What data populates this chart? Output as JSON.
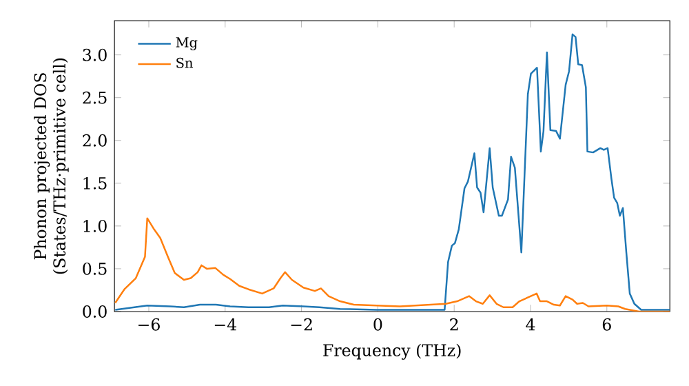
{
  "chart_data": {
    "type": "line",
    "xlabel": "Frequency (THz)",
    "ylabel": "Phonon projected DOS\n(States/THz·primitive cell)",
    "xlim": [
      -6.9,
      7.65
    ],
    "ylim": [
      0,
      3.4
    ],
    "xticks": [
      {
        "value": -6,
        "label": "−6"
      },
      {
        "value": -4,
        "label": "−4"
      },
      {
        "value": -2,
        "label": "−2"
      },
      0,
      2,
      4,
      6
    ],
    "yticks": [
      {
        "value": 0,
        "label": "0.0"
      },
      {
        "value": 0.5,
        "label": "0.5"
      },
      {
        "value": 1,
        "label": "1.0"
      },
      {
        "value": 1.5,
        "label": "1.5"
      },
      {
        "value": 2,
        "label": "2.0"
      },
      {
        "value": 2.5,
        "label": "2.5"
      },
      {
        "value": 3,
        "label": "3.0"
      }
    ],
    "legend": "top left",
    "grid": false,
    "marker": "none",
    "line_style": "solid",
    "series": [
      {
        "name": "Mg",
        "color": "#1f77b4",
        "x": [
          -6.88,
          -6.04,
          -5.44,
          -5.08,
          -4.66,
          -4.24,
          -3.87,
          -3.39,
          -2.85,
          -2.49,
          -1.95,
          -1.53,
          -0.99,
          -0.03,
          1.0,
          1.75,
          1.84,
          1.94,
          2.02,
          2.12,
          2.27,
          2.36,
          2.53,
          2.6,
          2.69,
          2.77,
          2.93,
          3.01,
          3.17,
          3.25,
          3.41,
          3.49,
          3.59,
          3.76,
          3.93,
          4.01,
          4.17,
          4.27,
          4.34,
          4.43,
          4.52,
          4.67,
          4.77,
          4.92,
          5.01,
          5.1,
          5.18,
          5.25,
          5.35,
          5.45,
          5.49,
          5.64,
          5.83,
          5.92,
          6.02,
          6.12,
          6.19,
          6.27,
          6.34,
          6.42,
          6.51,
          6.6,
          6.72,
          6.9,
          7.65
        ],
        "values": [
          0.02,
          0.07,
          0.06,
          0.05,
          0.08,
          0.08,
          0.06,
          0.05,
          0.05,
          0.07,
          0.06,
          0.05,
          0.03,
          0.02,
          0.02,
          0.02,
          0.58,
          0.77,
          0.8,
          0.96,
          1.44,
          1.52,
          1.85,
          1.45,
          1.39,
          1.16,
          1.91,
          1.45,
          1.12,
          1.12,
          1.31,
          1.81,
          1.68,
          0.69,
          2.54,
          2.78,
          2.85,
          1.87,
          2.11,
          3.03,
          2.12,
          2.11,
          2.02,
          2.65,
          2.81,
          3.24,
          3.21,
          2.89,
          2.88,
          2.62,
          1.87,
          1.86,
          1.91,
          1.89,
          1.91,
          1.55,
          1.33,
          1.27,
          1.12,
          1.21,
          0.69,
          0.21,
          0.09,
          0.02,
          0.02
        ]
      },
      {
        "name": "Sn",
        "color": "#ff7f0e",
        "x": [
          -6.88,
          -6.64,
          -6.34,
          -6.1,
          -6.04,
          -5.86,
          -5.7,
          -5.5,
          -5.32,
          -5.08,
          -4.9,
          -4.72,
          -4.62,
          -4.48,
          -4.26,
          -4.05,
          -3.87,
          -3.63,
          -3.39,
          -3.03,
          -2.73,
          -2.55,
          -2.43,
          -2.25,
          -1.95,
          -1.65,
          -1.49,
          -1.29,
          -0.99,
          -0.63,
          -0.03,
          0.58,
          1.78,
          2.08,
          2.39,
          2.57,
          2.75,
          2.93,
          3.11,
          3.29,
          3.53,
          3.71,
          4.01,
          4.16,
          4.25,
          4.43,
          4.61,
          4.77,
          4.92,
          5.1,
          5.22,
          5.37,
          5.52,
          6.0,
          6.3,
          6.48,
          6.84,
          7.65
        ],
        "values": [
          0.1,
          0.26,
          0.39,
          0.64,
          1.09,
          0.96,
          0.86,
          0.64,
          0.45,
          0.37,
          0.39,
          0.46,
          0.54,
          0.5,
          0.51,
          0.43,
          0.38,
          0.3,
          0.26,
          0.21,
          0.27,
          0.39,
          0.46,
          0.37,
          0.28,
          0.24,
          0.27,
          0.18,
          0.12,
          0.08,
          0.07,
          0.06,
          0.09,
          0.12,
          0.18,
          0.12,
          0.09,
          0.19,
          0.09,
          0.05,
          0.05,
          0.12,
          0.18,
          0.21,
          0.12,
          0.12,
          0.08,
          0.07,
          0.18,
          0.14,
          0.09,
          0.1,
          0.06,
          0.07,
          0.06,
          0.03,
          0.0,
          0.0
        ]
      }
    ]
  }
}
